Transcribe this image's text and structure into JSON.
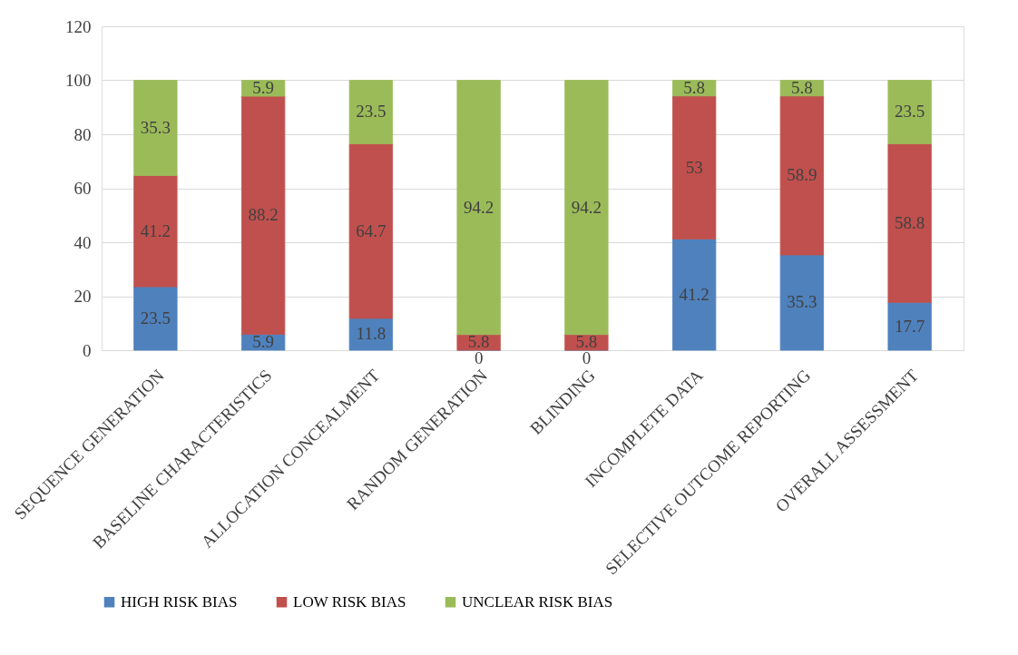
{
  "chart_data": {
    "type": "bar",
    "stacked": true,
    "data_labels": true,
    "grid": "y",
    "legend": "bottom",
    "categories": [
      "SEQUENCE GENERATION",
      "BASELINE CHARACTERISTICS",
      "ALLOCATION CONCEALMENT",
      "RANDOM GENERATION",
      "BLINDING",
      "INCOMPLETE DATA",
      "SELECTIVE OUTCOME REPORTING",
      "OVERALL ASSESSMENT"
    ],
    "series": [
      {
        "name": "HIGH RISK BIAS",
        "color": "#4f81bd",
        "values": [
          23.5,
          5.9,
          11.8,
          0,
          0,
          41.2,
          35.3,
          17.7
        ]
      },
      {
        "name": "LOW RISK BIAS",
        "color": "#c0504d",
        "values": [
          41.2,
          88.2,
          64.7,
          5.8,
          5.8,
          53,
          58.9,
          58.8
        ]
      },
      {
        "name": "UNCLEAR RISK BIAS",
        "color": "#9bbb59",
        "values": [
          35.3,
          5.9,
          23.5,
          94.2,
          94.2,
          5.8,
          5.8,
          23.5
        ]
      }
    ],
    "ylim": [
      0,
      120
    ],
    "yticks": [
      0,
      20,
      40,
      60,
      80,
      100,
      120
    ]
  }
}
